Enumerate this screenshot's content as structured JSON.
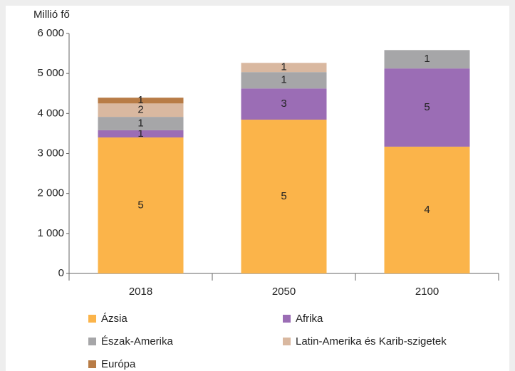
{
  "chart_data": {
    "type": "stacked_bar",
    "y_axis_label": "Millió fő",
    "categories": [
      "2018",
      "2050",
      "2100"
    ],
    "series": [
      {
        "name": "Ázsia",
        "color": "#fbb44a",
        "values": [
          3400,
          3845,
          3170
        ],
        "segment_labels": [
          "5",
          "5",
          "4"
        ]
      },
      {
        "name": "Afrika",
        "color": "#9b6db5",
        "values": [
          180,
          780,
          1955
        ],
        "segment_labels": [
          "1",
          "3",
          "5"
        ]
      },
      {
        "name": "Észak-Amerika",
        "color": "#a6a6a8",
        "values": [
          335,
          410,
          460
        ],
        "segment_labels": [
          "1",
          "1",
          "1"
        ]
      },
      {
        "name": "Latin-Amerika és Karib-szigetek",
        "color": "#d9b8a0",
        "values": [
          335,
          230,
          0
        ],
        "segment_labels": [
          "2",
          "1",
          null
        ]
      },
      {
        "name": "Európa",
        "color": "#b87c46",
        "values": [
          145,
          0,
          0
        ],
        "segment_labels": [
          "1",
          null,
          null
        ]
      }
    ],
    "ylim": [
      0,
      6000
    ],
    "yticks": [
      0,
      {
        "value": 1000,
        "label": "1 000"
      },
      {
        "value": 2000,
        "label": "2 000"
      },
      {
        "value": 3000,
        "label": "3 000"
      },
      {
        "value": 4000,
        "label": "4 000"
      },
      {
        "value": 5000,
        "label": "5 000"
      },
      {
        "value": 6000,
        "label": "6 000"
      }
    ]
  }
}
